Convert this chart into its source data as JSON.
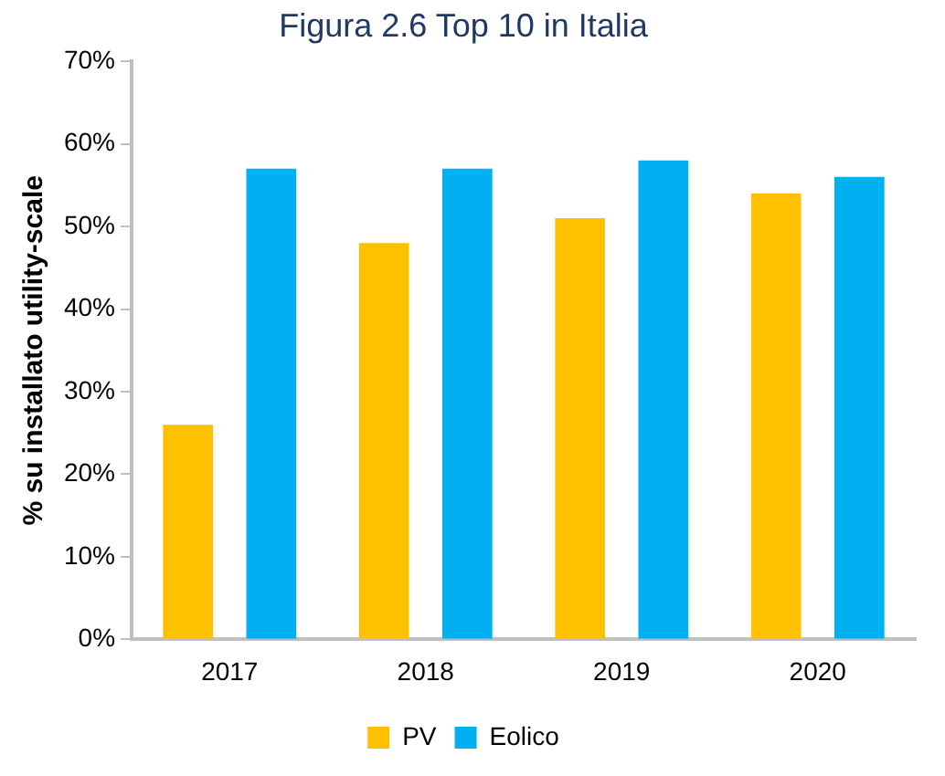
{
  "chart_data": {
    "type": "bar",
    "title": "Figura 2.6 Top 10 in Italia",
    "ylabel": "% su installato utility-scale",
    "categories": [
      "2017",
      "2018",
      "2019",
      "2020"
    ],
    "series": [
      {
        "name": "PV",
        "color": "#ffc000",
        "values": [
          26,
          48,
          51,
          54
        ]
      },
      {
        "name": "Eolico",
        "color": "#00b0f0",
        "values": [
          57,
          57,
          58,
          56
        ]
      }
    ],
    "ylim": [
      0,
      70
    ],
    "yticks": [
      {
        "value": 0,
        "label": "0%"
      },
      {
        "value": 10,
        "label": "10%"
      },
      {
        "value": 20,
        "label": "20%"
      },
      {
        "value": 30,
        "label": "30%"
      },
      {
        "value": 40,
        "label": "40%"
      },
      {
        "value": 50,
        "label": "50%"
      },
      {
        "value": 60,
        "label": "60%"
      },
      {
        "value": 70,
        "label": "70%"
      }
    ],
    "grid": false,
    "legend": "bottom"
  }
}
